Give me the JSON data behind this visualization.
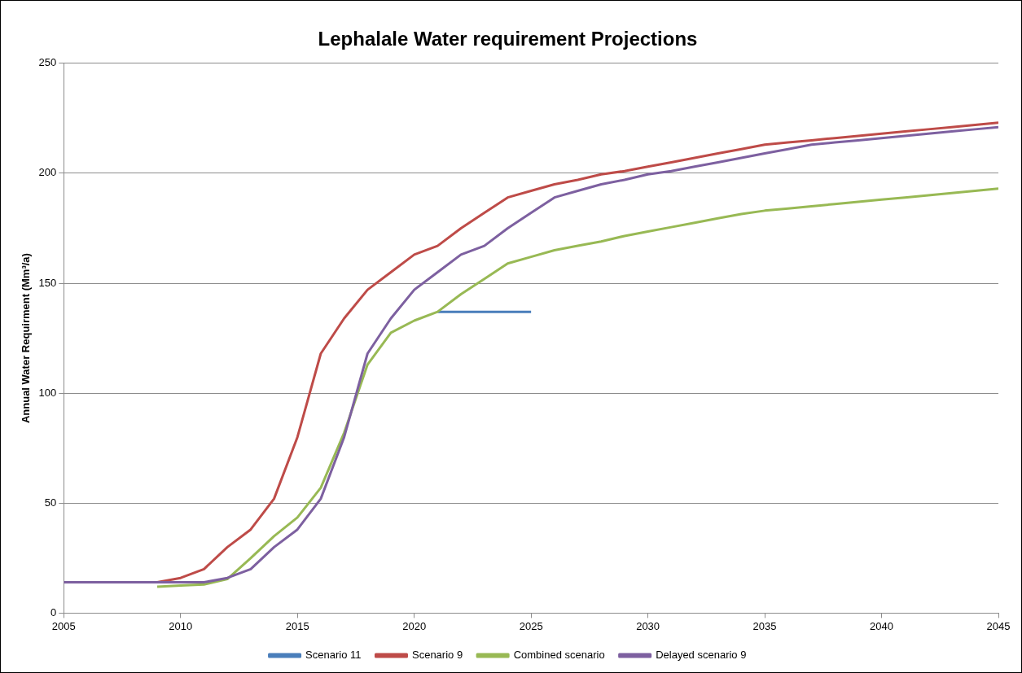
{
  "chart_data": {
    "type": "line",
    "title": "Lephalale Water requirement Projections",
    "ylabel": "Annual Water Requirment (Mm³/a)",
    "xlim": [
      2005,
      2045
    ],
    "xticks": [
      2005,
      2010,
      2015,
      2020,
      2025,
      2030,
      2035,
      2040,
      2045
    ],
    "ylim": [
      0,
      250
    ],
    "yticks": [
      0,
      50,
      100,
      150,
      200,
      250
    ],
    "grid": "y",
    "legend": "bottom",
    "marker": "none",
    "line_style": "solid",
    "series": [
      {
        "name": "Scenario 11",
        "color": "#4a7ebb",
        "x": [
          2021,
          2022,
          2023,
          2024,
          2025
        ],
        "values": [
          137,
          137,
          137,
          137,
          137
        ]
      },
      {
        "name": "Scenario 9",
        "color": "#be4b48",
        "x": [
          2009,
          2010,
          2011,
          2012,
          2013,
          2014,
          2015,
          2016,
          2017,
          2018,
          2019,
          2020,
          2021,
          2022,
          2023,
          2024,
          2025,
          2026,
          2027,
          2028,
          2029,
          2030,
          2031,
          2032,
          2033,
          2034,
          2035,
          2036,
          2037,
          2038,
          2039,
          2040,
          2041,
          2042,
          2043,
          2044,
          2045
        ],
        "values": [
          14,
          16,
          20,
          30,
          38,
          52,
          80,
          118,
          134,
          147,
          155,
          163,
          167,
          175,
          182,
          189,
          192,
          195,
          197,
          199.5,
          201,
          203,
          205,
          207,
          209,
          211,
          213,
          214,
          215,
          216,
          217,
          218,
          219,
          220,
          221,
          222,
          223
        ]
      },
      {
        "name": "Combined scenario",
        "color": "#98b954",
        "x": [
          2009,
          2010,
          2011,
          2012,
          2013,
          2014,
          2015,
          2016,
          2017,
          2018,
          2019,
          2020,
          2021,
          2022,
          2023,
          2024,
          2025,
          2026,
          2027,
          2028,
          2029,
          2030,
          2031,
          2032,
          2033,
          2034,
          2035,
          2036,
          2037,
          2038,
          2039,
          2040,
          2041,
          2042,
          2043,
          2044,
          2045
        ],
        "values": [
          12,
          12.5,
          13,
          15.5,
          25,
          35,
          43.5,
          57,
          82,
          113,
          127.5,
          133,
          137,
          145,
          152,
          159,
          162,
          165,
          167,
          169,
          171.5,
          173.5,
          175.5,
          177.5,
          179.5,
          181.5,
          183,
          184,
          185,
          186,
          187,
          188,
          189,
          190,
          191,
          192,
          193
        ]
      },
      {
        "name": "Delayed scenario 9",
        "color": "#7d60a0",
        "x": [
          2005,
          2006,
          2007,
          2008,
          2009,
          2010,
          2011,
          2012,
          2013,
          2014,
          2015,
          2016,
          2017,
          2018,
          2019,
          2020,
          2021,
          2022,
          2023,
          2024,
          2025,
          2026,
          2027,
          2028,
          2029,
          2030,
          2031,
          2032,
          2033,
          2034,
          2035,
          2036,
          2037,
          2038,
          2039,
          2040,
          2041,
          2042,
          2043,
          2044,
          2045
        ],
        "values": [
          14,
          14,
          14,
          14,
          14,
          14,
          14,
          16,
          20,
          30,
          38,
          52,
          80,
          118,
          134,
          147,
          155,
          163,
          167,
          175,
          182,
          189,
          192,
          195,
          197,
          199.5,
          201,
          203,
          205,
          207,
          209,
          211,
          213,
          214,
          215,
          216,
          217,
          218,
          219,
          220,
          221
        ]
      }
    ]
  }
}
